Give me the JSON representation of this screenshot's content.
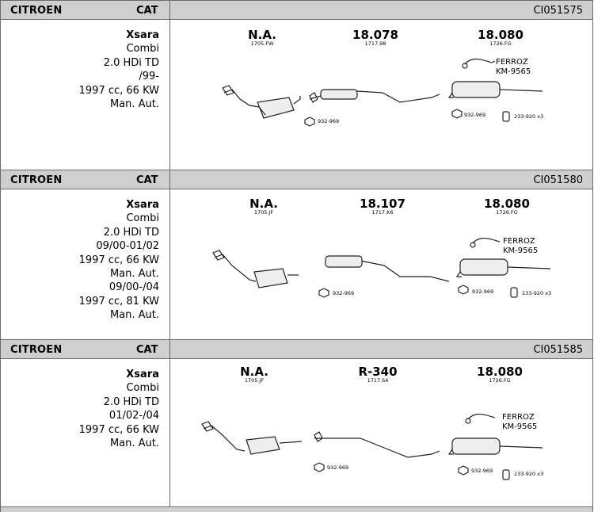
{
  "rows": [
    {
      "brand": "CITROEN",
      "type": "CAT",
      "code": "CI051575",
      "lines": [
        "Xsara",
        "Combi",
        "2.0 HDi TD",
        "/99-",
        "1997 cc, 66 KW",
        "Man. Aut."
      ],
      "parts": [
        {
          "num": "N.A.",
          "sub": "1705.FW"
        },
        {
          "num": "18.078",
          "sub": "1717.98"
        },
        {
          "num": "18.080",
          "sub": "1726.FG"
        }
      ],
      "ferroz": "FERROZ",
      "km": "KM-9565",
      "clamp1": "932-969",
      "clamp2": "932-969",
      "mount": "233-920 x3"
    },
    {
      "brand": "CITROEN",
      "type": "CAT",
      "code": "CI051580",
      "lines": [
        "Xsara",
        "Combi",
        "2.0 HDi TD",
        "09/00-01/02",
        "1997 cc, 66 KW",
        "Man. Aut.",
        "09/00-/04",
        "1997 cc, 81 KW",
        "Man. Aut."
      ],
      "parts": [
        {
          "num": "N.A.",
          "sub": "1705.JF"
        },
        {
          "num": "18.107",
          "sub": "1717.K6"
        },
        {
          "num": "18.080",
          "sub": "1726.FG"
        }
      ],
      "ferroz": "FERROZ",
      "km": "KM-9565",
      "clamp1": "932-969",
      "clamp2": "932-969",
      "mount": "233-920 x3"
    },
    {
      "brand": "CITROEN",
      "type": "CAT",
      "code": "CI051585",
      "lines": [
        "Xsara",
        "Combi",
        "2.0 HDi TD",
        "01/02-/04",
        "1997 cc, 66 KW",
        "Man. Aut."
      ],
      "parts": [
        {
          "num": "N.A.",
          "sub": "1705.JF"
        },
        {
          "num": "R-340",
          "sub": "1717.S4"
        },
        {
          "num": "18.080",
          "sub": "1726.FG"
        }
      ],
      "ferroz": "FERROZ",
      "km": "KM-9565",
      "clamp1": "932-969",
      "clamp2": "932-969",
      "mount": "233-920 x3"
    }
  ]
}
